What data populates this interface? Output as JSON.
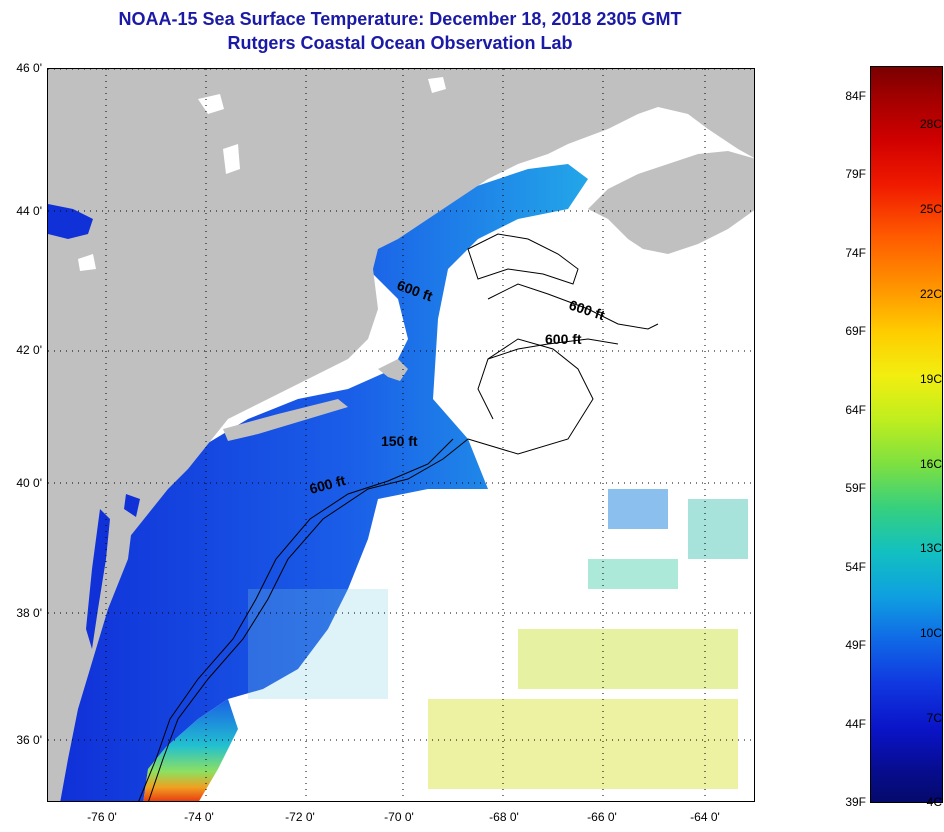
{
  "header": {
    "title": "NOAA-15 Sea Surface Temperature:  December 18, 2018 2305 GMT",
    "subtitle": "Rutgers Coastal Ocean Observation Lab"
  },
  "map": {
    "lat_labels": [
      "46 0'",
      "44 0'",
      "42 0'",
      "40 0'",
      "38 0'",
      "36 0'"
    ],
    "lon_labels": [
      "-76 0'",
      "-74 0'",
      "-72 0'",
      "-70 0'",
      "-68 0'",
      "-66 0'",
      "-64 0'"
    ],
    "lat_range": [
      35,
      46
    ],
    "lon_range": [
      -77,
      -63
    ],
    "grid": "dotted",
    "contour_labels": [
      "600 ft",
      "600 ft",
      "600 ft",
      "150 ft",
      "600 ft"
    ],
    "colors": {
      "land": "#c0c0c0",
      "water_no_data": "#ffffff",
      "cold": "#1030d8",
      "cool": "#20b4e0",
      "mild": "#e8e020",
      "warm": "#e84010"
    }
  },
  "colorbar": {
    "fahrenheit": [
      "84F",
      "79F",
      "74F",
      "69F",
      "64F",
      "59F",
      "54F",
      "49F",
      "44F",
      "39F"
    ],
    "celsius": [
      "28C",
      "25C",
      "22C",
      "19C",
      "16C",
      "13C",
      "10C",
      "7C",
      "4C"
    ],
    "range_f": [
      39,
      86
    ],
    "range_c": [
      4,
      30
    ]
  }
}
